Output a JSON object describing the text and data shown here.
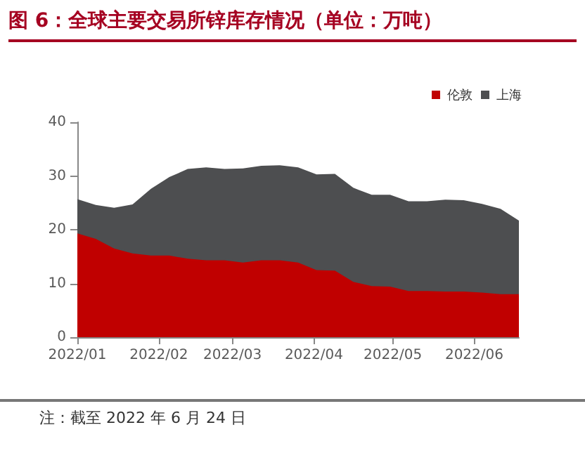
{
  "chart_data": {
    "type": "area",
    "title": "图 6：全球主要交易所锌库存情况（单位：万吨）",
    "stacked": true,
    "legend": "top right",
    "grid": false,
    "marker": "none",
    "x": [
      "2022-01-01",
      "2022-01-08",
      "2022-01-15",
      "2022-01-22",
      "2022-01-29",
      "2022-02-05",
      "2022-02-12",
      "2022-02-19",
      "2022-02-26",
      "2022-03-05",
      "2022-03-12",
      "2022-03-19",
      "2022-03-26",
      "2022-04-02",
      "2022-04-09",
      "2022-04-16",
      "2022-04-23",
      "2022-04-30",
      "2022-05-07",
      "2022-05-14",
      "2022-05-21",
      "2022-05-28",
      "2022-06-04",
      "2022-06-11",
      "2022-06-18"
    ],
    "series": [
      {
        "name": "伦敦",
        "color": "#c00000",
        "values": [
          19.3,
          18.3,
          16.5,
          15.6,
          15.2,
          15.2,
          14.6,
          14.3,
          14.3,
          13.9,
          14.3,
          14.3,
          13.9,
          12.5,
          12.4,
          10.3,
          9.5,
          9.4,
          8.6,
          8.6,
          8.5,
          8.5,
          8.3,
          8.0,
          8.0
        ]
      },
      {
        "name": "上海",
        "color": "#4d4e50",
        "values": [
          6.4,
          6.3,
          7.6,
          9.1,
          12.4,
          14.6,
          16.7,
          17.3,
          17.0,
          17.5,
          17.6,
          17.7,
          17.7,
          17.8,
          18.0,
          17.5,
          17.0,
          17.1,
          16.7,
          16.7,
          17.1,
          17.0,
          16.5,
          15.9,
          13.7
        ]
      }
    ],
    "xlim": [
      "2022-01-01",
      "2022-06-18"
    ],
    "xticks": [
      {
        "value": "2022-01-01",
        "label": "2022/01"
      },
      {
        "value": "2022-02-01",
        "label": "2022/02"
      },
      {
        "value": "2022-03-01",
        "label": "2022/03"
      },
      {
        "value": "2022-04-01",
        "label": "2022/04"
      },
      {
        "value": "2022-05-01",
        "label": "2022/05"
      },
      {
        "value": "2022-06-01",
        "label": "2022/06"
      }
    ],
    "ylim": [
      0,
      40
    ],
    "yticks": [
      0,
      10,
      20,
      30,
      40
    ],
    "annotations": [
      "注：截至 2022 年 6 月 24 日"
    ]
  }
}
